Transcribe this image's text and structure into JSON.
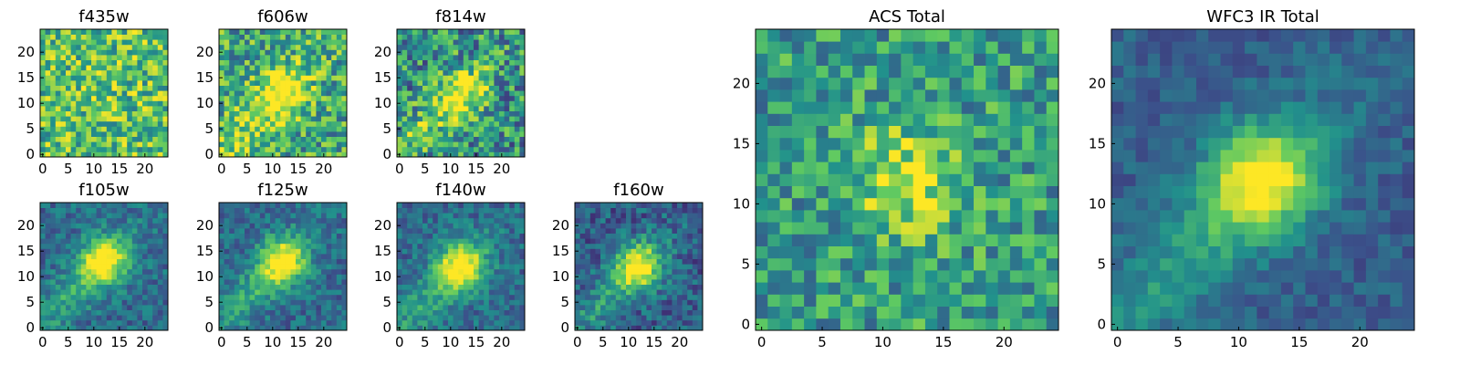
{
  "figure": {
    "background": "#ffffff",
    "colormap": "viridis",
    "colormap_stops": [
      "#440154",
      "#3b528b",
      "#21918c",
      "#5ec962",
      "#fde725"
    ]
  },
  "chart_data": [
    {
      "type": "heatmap",
      "title": "f435w",
      "grid_size": 25,
      "xlim": [
        0,
        24
      ],
      "ylim": [
        0,
        24
      ],
      "xticks": [
        "0",
        "5",
        "10",
        "15",
        "20"
      ],
      "yticks": [
        "0",
        "5",
        "10",
        "15",
        "20"
      ],
      "peak": [
        12,
        12
      ],
      "peak_strength": 0.05,
      "noise_level": 0.3,
      "base_level": 0.7
    },
    {
      "type": "heatmap",
      "title": "f606w",
      "grid_size": 25,
      "xlim": [
        0,
        24
      ],
      "ylim": [
        0,
        24
      ],
      "xticks": [
        "0",
        "5",
        "10",
        "15",
        "20"
      ],
      "yticks": [
        "0",
        "5",
        "10",
        "15",
        "20"
      ],
      "peak": [
        12,
        12
      ],
      "peak_strength": 0.45,
      "noise_level": 0.3,
      "base_level": 0.6
    },
    {
      "type": "heatmap",
      "title": "f814w",
      "grid_size": 25,
      "xlim": [
        0,
        24
      ],
      "ylim": [
        0,
        24
      ],
      "xticks": [
        "0",
        "5",
        "10",
        "15",
        "20"
      ],
      "yticks": [
        "0",
        "5",
        "10",
        "15",
        "20"
      ],
      "peak": [
        12,
        12
      ],
      "peak_strength": 0.45,
      "noise_level": 0.32,
      "base_level": 0.5
    },
    {
      "type": "heatmap",
      "title": "f105w",
      "grid_size": 25,
      "xlim": [
        0,
        24
      ],
      "ylim": [
        0,
        24
      ],
      "xticks": [
        "0",
        "5",
        "10",
        "15",
        "20"
      ],
      "yticks": [
        "0",
        "5",
        "10",
        "15",
        "20"
      ],
      "peak": [
        12,
        13
      ],
      "peak_strength": 0.6,
      "noise_level": 0.15,
      "base_level": 0.35
    },
    {
      "type": "heatmap",
      "title": "f125w",
      "grid_size": 25,
      "xlim": [
        0,
        24
      ],
      "ylim": [
        0,
        24
      ],
      "xticks": [
        "0",
        "5",
        "10",
        "15",
        "20"
      ],
      "yticks": [
        "0",
        "5",
        "10",
        "15",
        "20"
      ],
      "peak": [
        12,
        13
      ],
      "peak_strength": 0.6,
      "noise_level": 0.15,
      "base_level": 0.35
    },
    {
      "type": "heatmap",
      "title": "f140w",
      "grid_size": 25,
      "xlim": [
        0,
        24
      ],
      "ylim": [
        0,
        24
      ],
      "xticks": [
        "0",
        "5",
        "10",
        "15",
        "20"
      ],
      "yticks": [
        "0",
        "5",
        "10",
        "15",
        "20"
      ],
      "peak": [
        12,
        12
      ],
      "peak_strength": 0.6,
      "noise_level": 0.15,
      "base_level": 0.35
    },
    {
      "type": "heatmap",
      "title": "f160w",
      "grid_size": 25,
      "xlim": [
        0,
        24
      ],
      "ylim": [
        0,
        24
      ],
      "xticks": [
        "0",
        "5",
        "10",
        "15",
        "20"
      ],
      "yticks": [
        "0",
        "5",
        "10",
        "15",
        "20"
      ],
      "peak": [
        12,
        12
      ],
      "peak_strength": 0.6,
      "noise_level": 0.17,
      "base_level": 0.3
    },
    {
      "type": "heatmap",
      "title": "ACS Total",
      "grid_size": 25,
      "xlim": [
        0,
        24
      ],
      "ylim": [
        0,
        24
      ],
      "xticks": [
        "0",
        "5",
        "10",
        "15",
        "20"
      ],
      "yticks": [
        "0",
        "5",
        "10",
        "15",
        "20"
      ],
      "peak": [
        12,
        12
      ],
      "peak_strength": 0.35,
      "noise_level": 0.25,
      "base_level": 0.55
    },
    {
      "type": "heatmap",
      "title": "WFC3 IR Total",
      "grid_size": 25,
      "xlim": [
        0,
        24
      ],
      "ylim": [
        0,
        24
      ],
      "xticks": [
        "0",
        "5",
        "10",
        "15",
        "20"
      ],
      "yticks": [
        "0",
        "5",
        "10",
        "15",
        "20"
      ],
      "peak": [
        12,
        12
      ],
      "peak_strength": 0.6,
      "noise_level": 0.1,
      "base_level": 0.3
    }
  ]
}
